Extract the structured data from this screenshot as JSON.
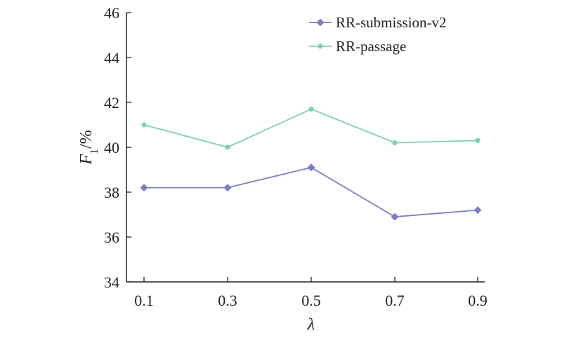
{
  "chart_data": {
    "type": "line",
    "x": [
      0.1,
      0.3,
      0.5,
      0.7,
      0.9
    ],
    "x_tick_labels": [
      "0.1",
      "0.3",
      "0.5",
      "0.7",
      "0.9"
    ],
    "series": [
      {
        "name": "RR-submission-v2",
        "values": [
          38.2,
          38.2,
          39.1,
          36.9,
          37.2
        ],
        "color": "#7b7ec4",
        "marker": "diamond"
      },
      {
        "name": "RR-passage",
        "values": [
          41.0,
          40.0,
          41.7,
          40.2,
          40.3
        ],
        "color": "#7ecfb6",
        "marker": "circle"
      }
    ],
    "xlabel": "λ",
    "ylabel": {
      "main": "F",
      "sub": "1",
      "suffix": "/%"
    },
    "ylim": [
      34,
      46
    ],
    "y_ticks": [
      34,
      36,
      38,
      40,
      42,
      44,
      46
    ],
    "grid": false,
    "legend_position": "top-right"
  }
}
